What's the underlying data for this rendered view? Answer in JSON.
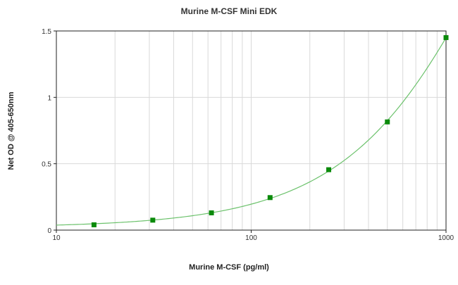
{
  "chart_data": {
    "type": "scatter",
    "title": "Murine M-CSF Mini EDK",
    "xlabel": "Murine M-CSF (pg/ml)",
    "ylabel": "Net OD @ 405-650nm",
    "x_scale": "log",
    "xlim": [
      10,
      1000
    ],
    "ylim": [
      0,
      1.5
    ],
    "x_ticks": [
      10,
      100,
      1000
    ],
    "x_tick_labels": [
      "10",
      "100",
      "1000"
    ],
    "y_ticks": [
      0,
      0.5,
      1,
      1.5
    ],
    "y_tick_labels": [
      "0",
      "0.5",
      "1",
      "1.5"
    ],
    "grid": true,
    "series": [
      {
        "x": [
          15.6,
          31.25,
          62.5,
          125,
          250,
          500,
          1000
        ],
        "y": [
          0.04,
          0.075,
          0.13,
          0.245,
          0.455,
          0.815,
          1.45
        ],
        "marker": "square",
        "fit": "curve"
      }
    ],
    "colors": {
      "marker": "#0a8a0a",
      "curve": "#6cc26c"
    }
  }
}
